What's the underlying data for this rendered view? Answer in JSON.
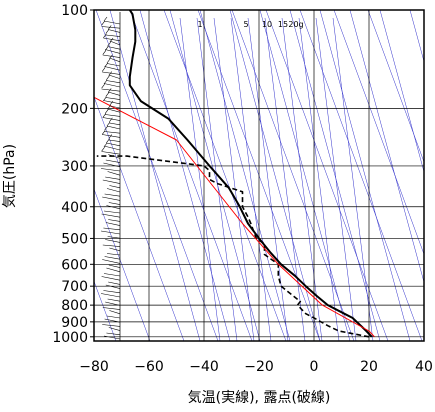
{
  "chart_data": {
    "type": "line",
    "xlabel": "気温(実線), 露点(破線)",
    "ylabel": "気圧(hPa)",
    "xlim": [
      -80,
      40
    ],
    "ylim": [
      1030,
      100
    ],
    "y_scale": "log",
    "x_ticks": [
      -80,
      -60,
      -40,
      -20,
      0,
      20,
      40
    ],
    "x_tick_labels": [
      "−80",
      "−60",
      "−40",
      "−20",
      "0",
      "20",
      "40"
    ],
    "y_ticks": [
      100,
      200,
      300,
      400,
      500,
      600,
      700,
      800,
      900,
      1000
    ],
    "y_tick_labels": [
      "100",
      "200",
      "300",
      "400",
      "500",
      "600",
      "700",
      "800",
      "900",
      "1000"
    ],
    "mixing_ratio_labels": [
      "1",
      "5",
      "10",
      "15",
      "20g"
    ],
    "colors": {
      "temperature": "#000000",
      "dewpoint": "#000000",
      "reference": "#ff0000",
      "guides": "#3333cc",
      "grid": "#000000"
    },
    "series": [
      {
        "style": "solid",
        "points": [
          [
            21,
            1000
          ],
          [
            19,
            960
          ],
          [
            17,
            925
          ],
          [
            14,
            875
          ],
          [
            11,
            850
          ],
          [
            5,
            800
          ],
          [
            1,
            750
          ],
          [
            -3,
            700
          ],
          [
            -7,
            650
          ],
          [
            -12,
            600
          ],
          [
            -16,
            550
          ],
          [
            -20,
            500
          ],
          [
            -24,
            450
          ],
          [
            -27,
            400
          ],
          [
            -31,
            350
          ],
          [
            -38,
            300
          ],
          [
            -46,
            250
          ],
          [
            -53,
            215
          ],
          [
            -63,
            190
          ],
          [
            -67,
            170
          ],
          [
            -67,
            160
          ],
          [
            -66,
            140
          ],
          [
            -65,
            125
          ],
          [
            -65,
            115
          ],
          [
            -66,
            103
          ],
          [
            -67,
            100
          ]
        ]
      },
      {
        "style": "dashed",
        "points": [
          [
            20,
            1000
          ],
          [
            9,
            960
          ],
          [
            5,
            925
          ],
          [
            0,
            875
          ],
          [
            -3,
            850
          ],
          [
            -6,
            800
          ],
          [
            -5,
            780
          ],
          [
            -12,
            700
          ],
          [
            -13,
            650
          ],
          [
            -13,
            600
          ],
          [
            -18,
            560
          ],
          [
            -18,
            520
          ],
          [
            -21,
            500
          ],
          [
            -23,
            450
          ],
          [
            -24,
            430
          ],
          [
            -26,
            400
          ],
          [
            -26,
            360
          ],
          [
            -35,
            340
          ],
          [
            -38,
            330
          ],
          [
            -38,
            310
          ],
          [
            -40,
            300
          ],
          [
            -68,
            280
          ],
          [
            -79,
            280
          ]
        ]
      },
      {
        "style": "red",
        "points": [
          [
            22,
            1000
          ],
          [
            20,
            960
          ],
          [
            3,
            800
          ],
          [
            -13,
            600
          ],
          [
            -26,
            450
          ],
          [
            -50,
            250
          ],
          [
            -80,
            185
          ]
        ]
      }
    ]
  }
}
